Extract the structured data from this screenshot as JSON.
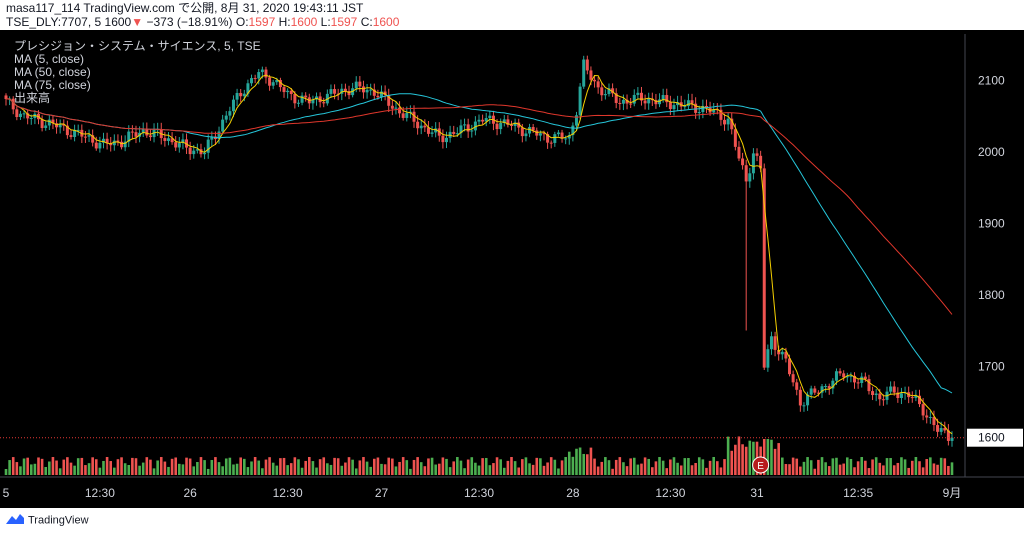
{
  "header": {
    "line1": "masa117_114 TradingView.com で公開, 8月 31, 2020 19:43:11 JST",
    "symbol": "TSE_DLY:7707, 5",
    "last": "1600",
    "change": "−373 (−18.91%)",
    "o_label": "O:",
    "o_value": "1597",
    "h_label": "H:",
    "h_value": "1600",
    "l_label": "L:",
    "l_value": "1597",
    "c_label": "C:",
    "c_value": "1600"
  },
  "legend": {
    "title": "プレシジョン・システム・サイエンス, 5, TSE",
    "ma5": "MA (5, close)",
    "ma50": "MA (50, close)",
    "ma75": "MA (75, close)",
    "volume": "出来高"
  },
  "footer": {
    "brand": "TradingView"
  },
  "colors": {
    "up": "#26a69a",
    "down": "#ef5350",
    "vol_up": "#4caf50",
    "vol_down": "#ef5350",
    "ma5": "#f5d000",
    "ma50": "#26c6da",
    "ma75": "#e0372c",
    "price_line": "#e53935",
    "price_badge_bg": "#ffffff",
    "price_badge_text": "#131722",
    "earnings_icon": "#b71c1c"
  },
  "icons": {
    "earnings": "earnings-e-icon",
    "logo": "tradingview-logo-icon"
  },
  "chart_data": {
    "type": "candlestick",
    "timeframe": "5",
    "price_axis": {
      "ticks": [
        1600,
        1700,
        1800,
        1900,
        2000,
        2100
      ],
      "range": [
        1545,
        2165
      ],
      "current_price": 1600
    },
    "time_axis": {
      "ticks": [
        "5",
        "12:30",
        "26",
        "12:30",
        "27",
        "12:30",
        "28",
        "12:30",
        "31",
        "12:35",
        "9月"
      ]
    },
    "earnings_marker": {
      "date": "31",
      "label": "E"
    },
    "series": [
      {
        "name": "MA (5, close)"
      },
      {
        "name": "MA (50, close)"
      },
      {
        "name": "MA (75, close)"
      },
      {
        "name": "出来高"
      }
    ],
    "keypoints_close": [
      [
        0,
        2070
      ],
      [
        5,
        2050
      ],
      [
        12,
        2040
      ],
      [
        20,
        2025
      ],
      [
        27,
        2010
      ],
      [
        32,
        2015
      ],
      [
        38,
        2030
      ],
      [
        44,
        2020
      ],
      [
        50,
        2005
      ],
      [
        55,
        2000
      ],
      [
        58,
        2025
      ],
      [
        62,
        2060
      ],
      [
        66,
        2090
      ],
      [
        70,
        2110
      ],
      [
        74,
        2100
      ],
      [
        78,
        2080
      ],
      [
        84,
        2070
      ],
      [
        90,
        2080
      ],
      [
        96,
        2090
      ],
      [
        102,
        2085
      ],
      [
        108,
        2060
      ],
      [
        114,
        2040
      ],
      [
        120,
        2020
      ],
      [
        126,
        2030
      ],
      [
        132,
        2045
      ],
      [
        138,
        2040
      ],
      [
        144,
        2030
      ],
      [
        150,
        2020
      ],
      [
        156,
        2020
      ],
      [
        158,
        2060
      ],
      [
        160,
        2120
      ],
      [
        164,
        2090
      ],
      [
        170,
        2070
      ],
      [
        176,
        2075
      ],
      [
        182,
        2070
      ],
      [
        188,
        2065
      ],
      [
        194,
        2060
      ],
      [
        200,
        2045
      ],
      [
        203,
        1990
      ],
      [
        205,
        1960
      ],
      [
        207,
        2000
      ],
      [
        209,
        1975
      ],
      [
        210,
        1700
      ],
      [
        212,
        1740
      ],
      [
        216,
        1705
      ],
      [
        220,
        1650
      ],
      [
        226,
        1670
      ],
      [
        232,
        1690
      ],
      [
        238,
        1675
      ],
      [
        242,
        1655
      ],
      [
        246,
        1665
      ],
      [
        250,
        1660
      ],
      [
        254,
        1640
      ],
      [
        258,
        1610
      ],
      [
        262,
        1600
      ]
    ]
  }
}
